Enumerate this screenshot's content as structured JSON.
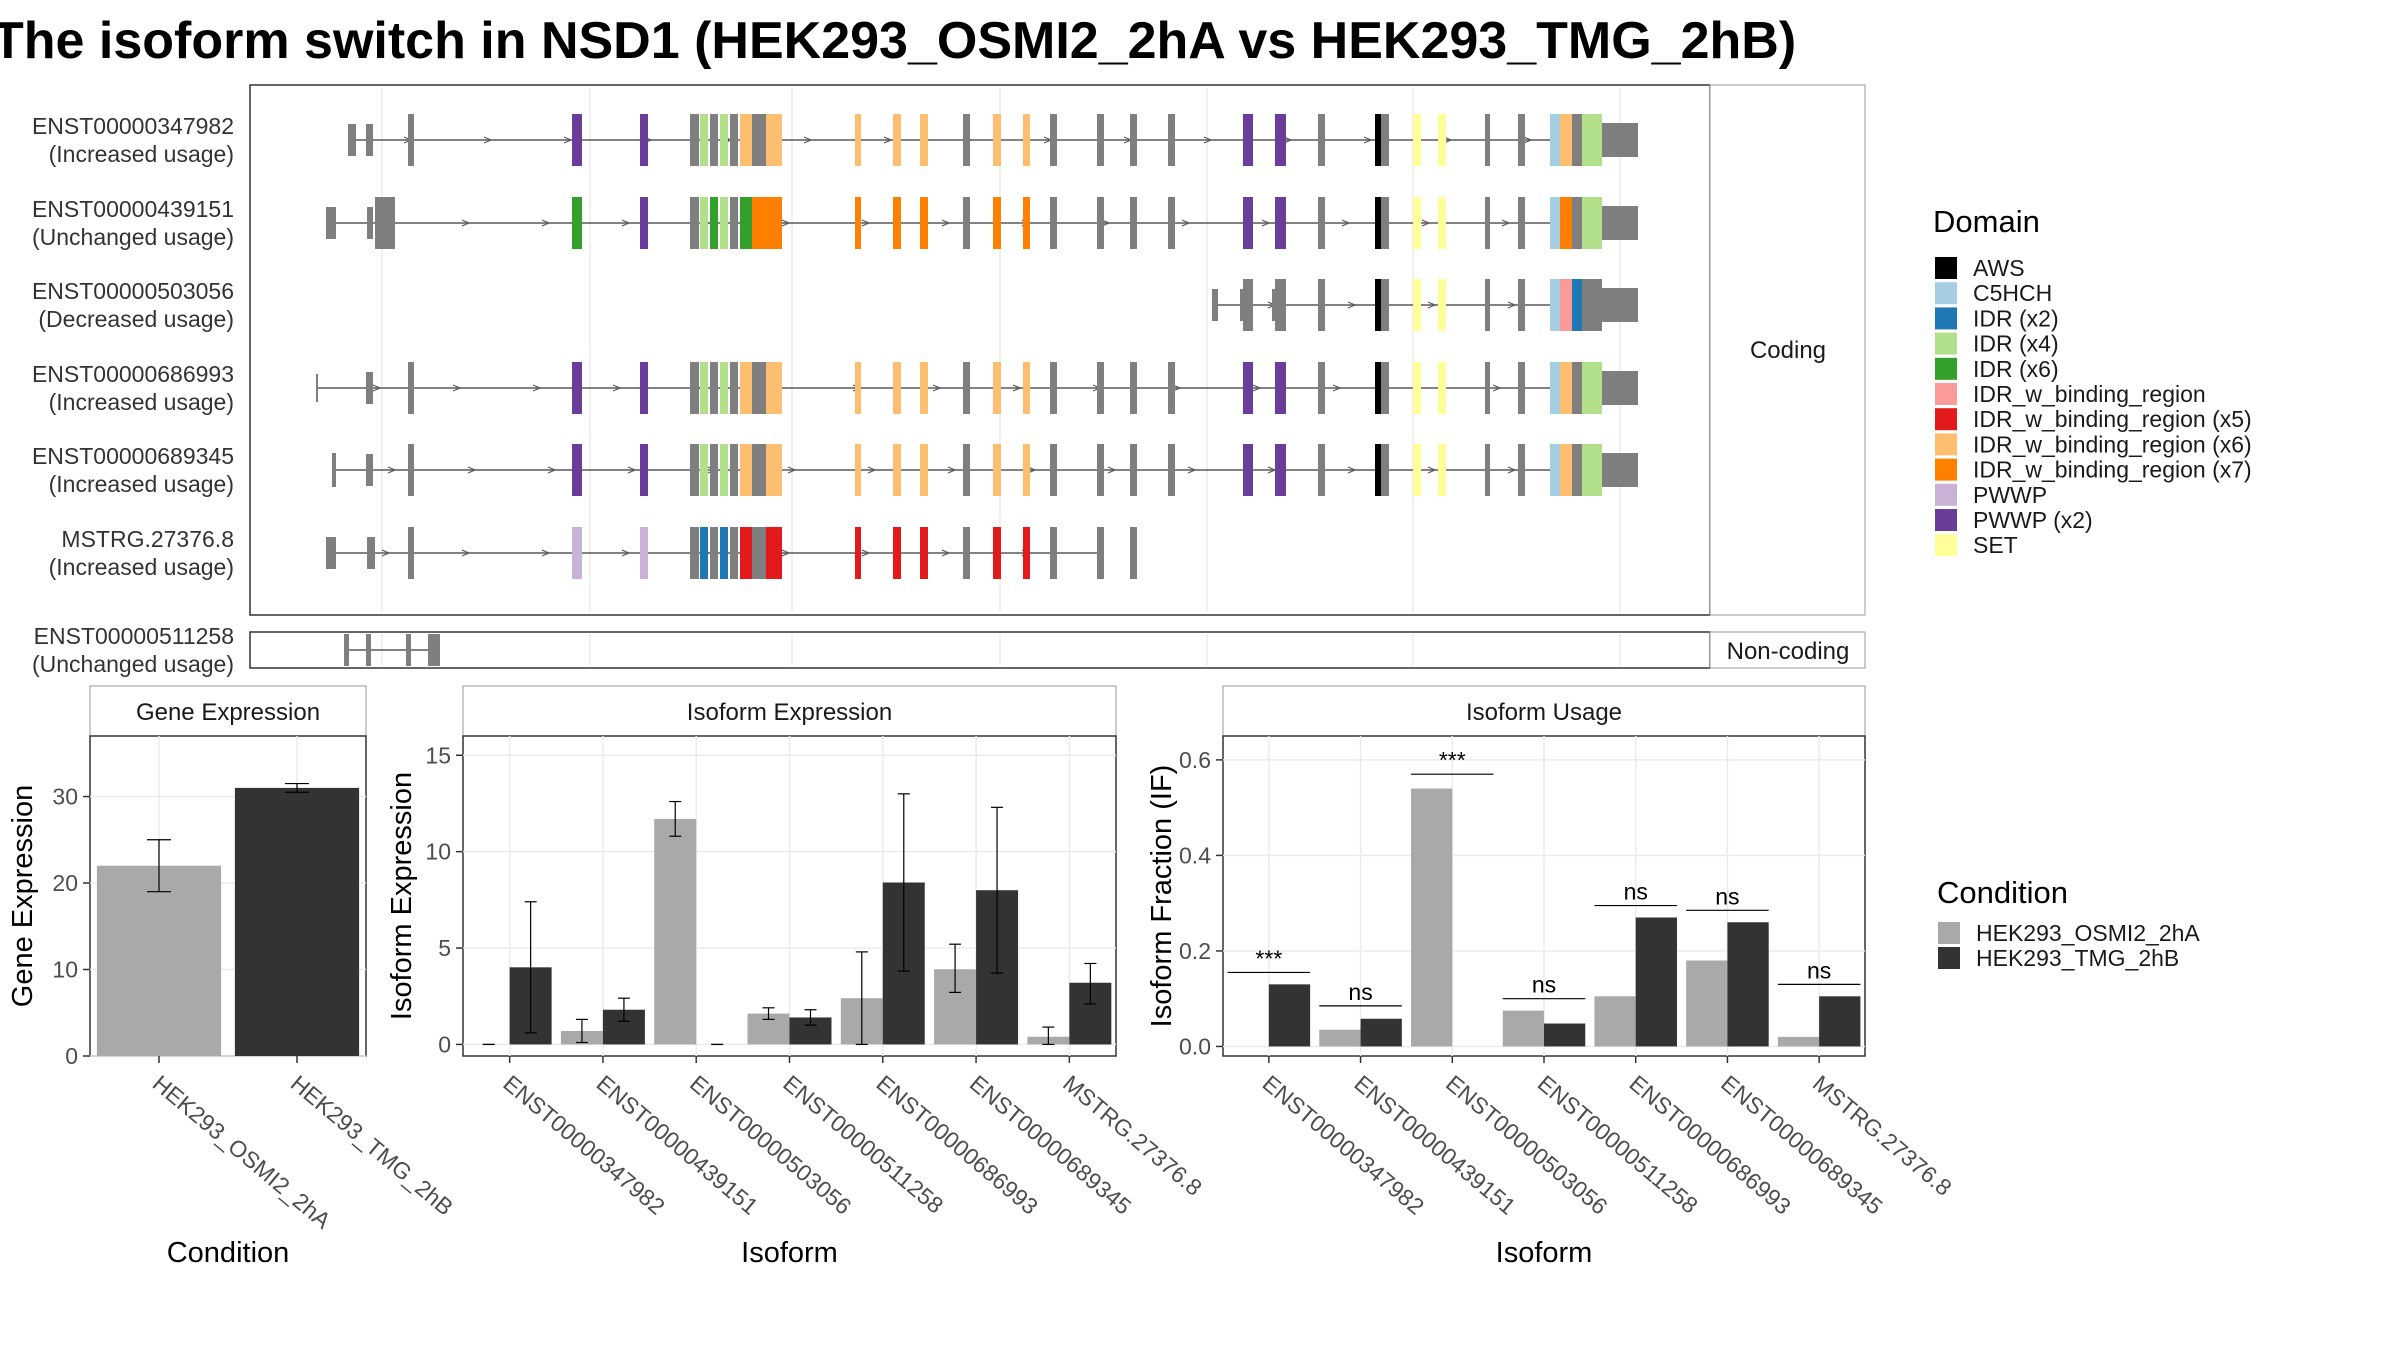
{
  "title": "The isoform switch in NSD1 (HEK293_OSMI2_2hA vs HEK293_TMG_2hB)",
  "colors": {
    "cond_a": "#a9a9a9",
    "cond_b": "#333333",
    "intron": "#5a5a5a",
    "utr": "#7f7f7f",
    "panel_border": "#333333",
    "strip_fill": "#ffffff",
    "grid": "#ebebeb"
  },
  "domain_legend": {
    "title": "Domain",
    "items": [
      {
        "label": "AWS",
        "color": "#000000"
      },
      {
        "label": "C5HCH",
        "color": "#a6cee3"
      },
      {
        "label": "IDR (x2)",
        "color": "#1f78b4"
      },
      {
        "label": "IDR (x4)",
        "color": "#b2df8a"
      },
      {
        "label": "IDR (x6)",
        "color": "#33a02c"
      },
      {
        "label": "IDR_w_binding_region",
        "color": "#fb9a99"
      },
      {
        "label": "IDR_w_binding_region (x5)",
        "color": "#e31a1c"
      },
      {
        "label": "IDR_w_binding_region (x6)",
        "color": "#fdbf6f"
      },
      {
        "label": "IDR_w_binding_region (x7)",
        "color": "#ff7f00"
      },
      {
        "label": "PWWP",
        "color": "#cab2d6"
      },
      {
        "label": "PWWP (x2)",
        "color": "#6a3d9a"
      },
      {
        "label": "SET",
        "color": "#ffff99"
      }
    ]
  },
  "condition_legend": {
    "title": "Condition",
    "items": [
      {
        "label": "HEK293_OSMI2_2hA",
        "color": "#a9a9a9"
      },
      {
        "label": "HEK293_TMG_2hB",
        "color": "#333333"
      }
    ]
  },
  "structure": {
    "coding_strip": "Coding",
    "noncoding_strip": "Non-coding",
    "isoforms": [
      {
        "id": "ENST00000347982",
        "usage": "(Increased usage)",
        "profile": "A"
      },
      {
        "id": "ENST00000439151",
        "usage": "(Unchanged usage)",
        "profile": "B"
      },
      {
        "id": "ENST00000503056",
        "usage": "(Decreased usage)",
        "profile": "C"
      },
      {
        "id": "ENST00000686993",
        "usage": "(Increased usage)",
        "profile": "A"
      },
      {
        "id": "ENST00000689345",
        "usage": "(Increased usage)",
        "profile": "A"
      },
      {
        "id": "MSTRG.27376.8",
        "usage": "(Increased usage)",
        "profile": "D"
      }
    ],
    "noncoding": {
      "id": "ENST00000511258",
      "usage": "(Unchanged usage)"
    }
  },
  "chart_data": [
    {
      "type": "bar",
      "title": "Gene Expression",
      "xlabel": "Condition",
      "ylabel": "Gene Expression",
      "categories": [
        "HEK293_OSMI2_2hA",
        "HEK293_TMG_2hB"
      ],
      "values": [
        22.0,
        31.0
      ],
      "error_low": [
        19.0,
        30.5
      ],
      "error_high": [
        25.0,
        31.5
      ],
      "ylim": [
        0,
        37
      ],
      "yticks": [
        0,
        10,
        20,
        30
      ]
    },
    {
      "type": "bar",
      "title": "Isoform Expression",
      "xlabel": "Isoform",
      "ylabel": "Isoform Expression",
      "categories": [
        "ENST00000347982",
        "ENST00000439151",
        "ENST00000503056",
        "ENST00000511258",
        "ENST00000686993",
        "ENST00000689345",
        "MSTRG.27376.8"
      ],
      "series": [
        {
          "name": "HEK293_OSMI2_2hA",
          "values": [
            0.0,
            0.7,
            11.7,
            1.6,
            2.4,
            3.9,
            0.4
          ],
          "error_low": [
            0.0,
            0.1,
            10.8,
            1.3,
            0.0,
            2.7,
            0.0
          ],
          "error_high": [
            0.0,
            1.3,
            12.6,
            1.9,
            4.8,
            5.2,
            0.9
          ]
        },
        {
          "name": "HEK293_TMG_2hB",
          "values": [
            4.0,
            1.8,
            0.0,
            1.4,
            8.4,
            8.0,
            3.2
          ],
          "error_low": [
            0.6,
            1.2,
            0.0,
            1.0,
            3.8,
            3.7,
            2.1
          ],
          "error_high": [
            7.4,
            2.4,
            0.0,
            1.8,
            13.0,
            12.3,
            4.2
          ]
        }
      ],
      "ylim": [
        -0.6,
        16
      ],
      "yticks": [
        0,
        5,
        10,
        15
      ]
    },
    {
      "type": "bar",
      "title": "Isoform Usage",
      "xlabel": "Isoform",
      "ylabel": "Isoform Fraction (IF)",
      "categories": [
        "ENST00000347982",
        "ENST00000439151",
        "ENST00000503056",
        "ENST00000511258",
        "ENST00000686993",
        "ENST00000689345",
        "MSTRG.27376.8"
      ],
      "series": [
        {
          "name": "HEK293_OSMI2_2hA",
          "values": [
            0.0,
            0.035,
            0.54,
            0.075,
            0.105,
            0.18,
            0.02
          ]
        },
        {
          "name": "HEK293_TMG_2hB",
          "values": [
            0.13,
            0.058,
            0.0,
            0.048,
            0.27,
            0.26,
            0.105
          ]
        }
      ],
      "significance": [
        "***",
        "ns",
        "***",
        "ns",
        "ns",
        "ns",
        "ns"
      ],
      "sig_level": [
        0.155,
        0.085,
        0.57,
        0.1,
        0.295,
        0.285,
        0.13
      ],
      "ylim": [
        -0.02,
        0.65
      ],
      "yticks": [
        "0.0",
        "0.2",
        "0.4",
        "0.6"
      ]
    }
  ]
}
